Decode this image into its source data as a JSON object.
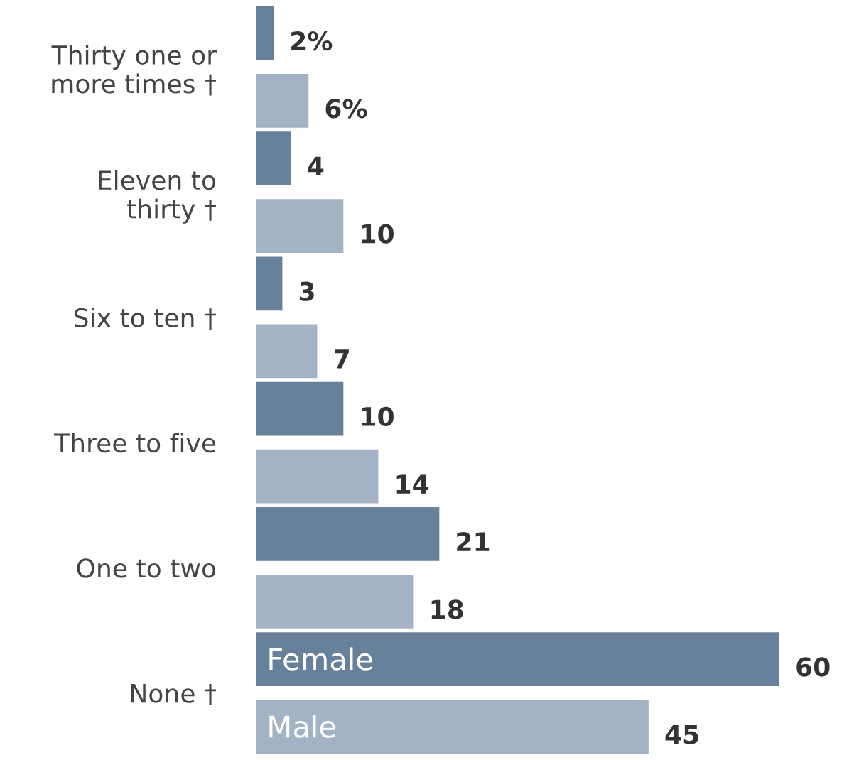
{
  "chart_data": {
    "type": "bar",
    "orientation": "horizontal",
    "legend": false,
    "categories": [
      "Thirty one or\nmore times †",
      "Eleven to\nthirty †",
      "Six to ten †",
      "Three to five",
      "One to two",
      "None †"
    ],
    "series": [
      {
        "name": "Female",
        "color": "#68819a",
        "values": [
          2,
          4,
          3,
          10,
          21,
          60
        ],
        "value_labels": [
          "2%",
          "4",
          "3",
          "10",
          "21",
          "60"
        ]
      },
      {
        "name": "Male",
        "color": "#a3b3c5",
        "values": [
          6,
          10,
          7,
          14,
          18,
          45
        ],
        "value_labels": [
          "6%",
          "10",
          "7",
          "14",
          "18",
          "45"
        ]
      }
    ]
  }
}
